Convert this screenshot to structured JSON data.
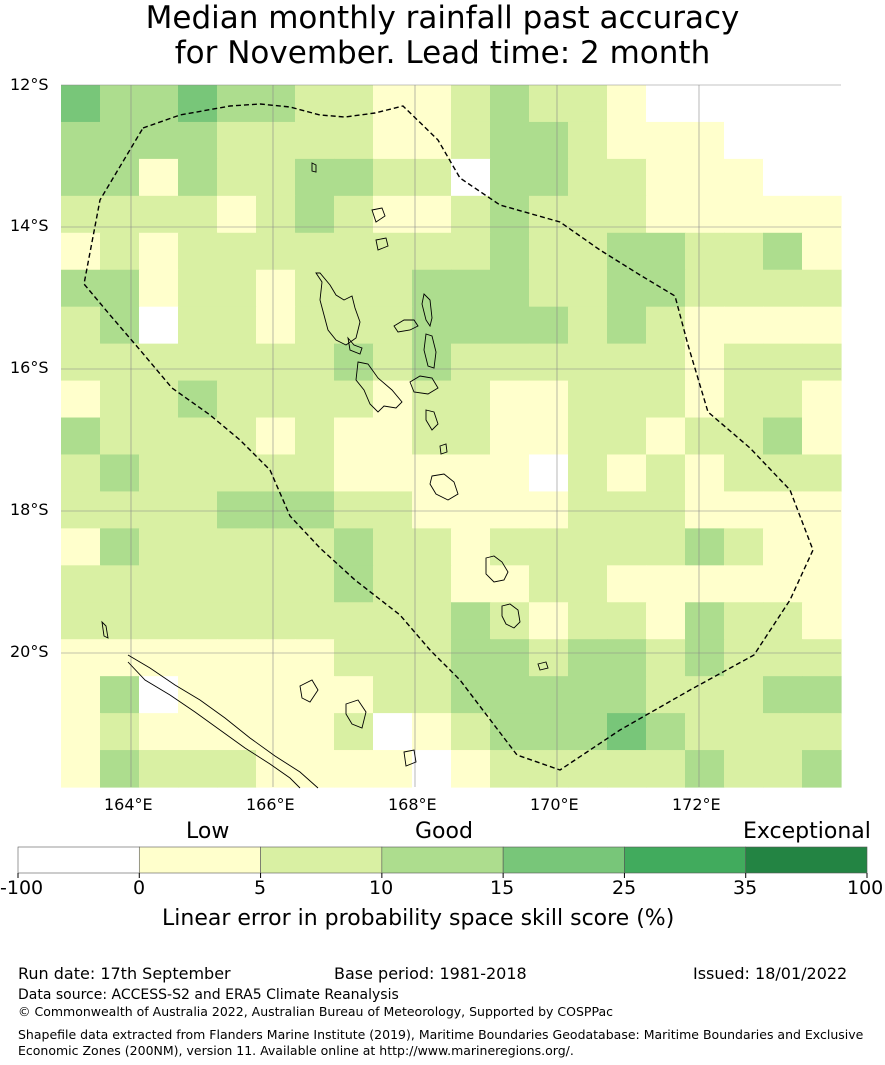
{
  "title": {
    "line1": "Median monthly rainfall past accuracy",
    "line2": "for November. Lead time: 2 month"
  },
  "map": {
    "lat_labels": [
      "12°S",
      "14°S",
      "16°S",
      "18°S",
      "20°S"
    ],
    "lon_labels": [
      "164°E",
      "166°E",
      "168°E",
      "170°E",
      "172°E"
    ],
    "colors": [
      "#ffffff",
      "#ffffcc",
      "#d9f0a3",
      "#addd8e",
      "#78c679",
      "#41ab5d",
      "#238443"
    ],
    "grid": [
      [
        4,
        3,
        3,
        4,
        3,
        3,
        2,
        2,
        1,
        1,
        2,
        3,
        2,
        2,
        1,
        0,
        0,
        0,
        0,
        0
      ],
      [
        3,
        3,
        3,
        3,
        2,
        2,
        2,
        2,
        1,
        1,
        2,
        3,
        3,
        2,
        1,
        1,
        1,
        0,
        0,
        0
      ],
      [
        3,
        3,
        1,
        3,
        2,
        2,
        3,
        3,
        2,
        2,
        0,
        3,
        3,
        2,
        2,
        1,
        1,
        1,
        0,
        0
      ],
      [
        2,
        2,
        2,
        2,
        1,
        2,
        3,
        2,
        1,
        1,
        2,
        3,
        2,
        2,
        2,
        1,
        1,
        1,
        1,
        1
      ],
      [
        1,
        2,
        1,
        2,
        2,
        2,
        2,
        2,
        2,
        2,
        2,
        3,
        2,
        2,
        3,
        3,
        2,
        2,
        3,
        1
      ],
      [
        3,
        3,
        1,
        2,
        2,
        1,
        2,
        2,
        2,
        3,
        3,
        3,
        2,
        2,
        3,
        3,
        2,
        2,
        2,
        2
      ],
      [
        2,
        3,
        0,
        2,
        2,
        1,
        2,
        2,
        2,
        3,
        3,
        3,
        3,
        2,
        3,
        2,
        1,
        1,
        1,
        1
      ],
      [
        2,
        2,
        2,
        2,
        2,
        2,
        2,
        3,
        2,
        3,
        2,
        2,
        2,
        2,
        2,
        2,
        1,
        2,
        2,
        2
      ],
      [
        1,
        2,
        2,
        3,
        2,
        2,
        2,
        2,
        1,
        2,
        2,
        1,
        1,
        2,
        2,
        2,
        1,
        2,
        2,
        1
      ],
      [
        3,
        2,
        2,
        2,
        2,
        1,
        2,
        1,
        1,
        2,
        2,
        1,
        1,
        2,
        2,
        1,
        2,
        2,
        3,
        1
      ],
      [
        2,
        3,
        2,
        2,
        2,
        2,
        2,
        1,
        1,
        1,
        1,
        1,
        0,
        2,
        1,
        2,
        1,
        2,
        2,
        2
      ],
      [
        2,
        2,
        2,
        2,
        3,
        3,
        3,
        2,
        2,
        1,
        1,
        1,
        1,
        2,
        2,
        2,
        1,
        1,
        1,
        1
      ],
      [
        1,
        3,
        2,
        2,
        2,
        2,
        2,
        3,
        2,
        2,
        1,
        2,
        2,
        2,
        2,
        2,
        3,
        2,
        1,
        1
      ],
      [
        2,
        2,
        2,
        2,
        2,
        2,
        2,
        3,
        2,
        2,
        1,
        1,
        2,
        2,
        1,
        1,
        1,
        1,
        1,
        1
      ],
      [
        2,
        2,
        2,
        2,
        2,
        2,
        2,
        2,
        2,
        2,
        3,
        2,
        1,
        2,
        2,
        1,
        3,
        2,
        2,
        1
      ],
      [
        1,
        1,
        1,
        1,
        1,
        1,
        1,
        2,
        2,
        2,
        3,
        3,
        2,
        3,
        3,
        2,
        3,
        2,
        2,
        2
      ],
      [
        1,
        3,
        0,
        1,
        1,
        1,
        1,
        1,
        2,
        2,
        3,
        3,
        3,
        3,
        3,
        2,
        2,
        2,
        3,
        3
      ],
      [
        1,
        2,
        1,
        1,
        1,
        1,
        1,
        2,
        0,
        1,
        2,
        3,
        3,
        3,
        4,
        3,
        2,
        2,
        2,
        2
      ],
      [
        1,
        3,
        2,
        2,
        2,
        1,
        1,
        1,
        1,
        0,
        1,
        2,
        2,
        2,
        2,
        2,
        3,
        2,
        2,
        3
      ]
    ]
  },
  "colorbar": {
    "category_labels": [
      "Low",
      "Good",
      "Exceptional"
    ],
    "tick_labels": [
      "-100",
      "0",
      "5",
      "10",
      "15",
      "25",
      "35",
      "100"
    ],
    "xlabel": "Linear error in probability space skill score (%)"
  },
  "footer": {
    "run_date": "Run date: 17th September",
    "base_period": "Base period: 1981-2018",
    "issued": "Issued: 18/01/2022",
    "data_source": "Data source: ACCESS-S2 and ERA5 Climate Reanalysis",
    "copyright": "© Commonwealth of Australia 2022, Australian Bureau of Meteorology, Supported by COSPPac",
    "shapefile_line1": "Shapefile data extracted from Flanders Marine Institute (2019), Maritime Boundaries Geodatabase: Maritime Boundaries and Exclusive",
    "shapefile_line2": "Economic Zones (200NM), version 11. Available online at http://www.marineregions.org/."
  }
}
